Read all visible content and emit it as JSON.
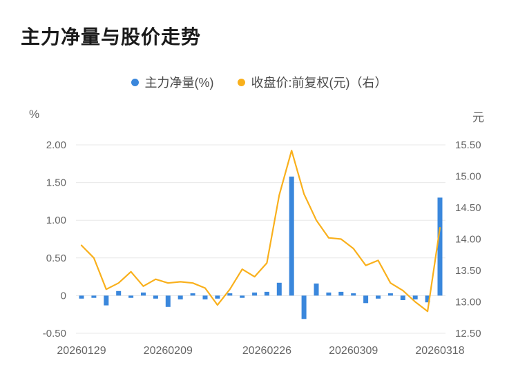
{
  "page": {
    "title": "主力净量与股价走势"
  },
  "legend": [
    {
      "label": "主力净量(%)",
      "color": "#3a87dc"
    },
    {
      "label": "收盘价:前复权(元)（右）",
      "color": "#f9b01c"
    }
  ],
  "axes": {
    "left_unit": "%",
    "right_unit": "元",
    "left_ticks": [
      "2.00",
      "1.50",
      "1.00",
      "0.50",
      "0",
      "-0.50"
    ],
    "right_ticks": [
      "15.50",
      "15.00",
      "14.50",
      "14.00",
      "13.50",
      "13.00",
      "12.50"
    ],
    "x_labels": [
      {
        "label": "20260129",
        "index": 0
      },
      {
        "label": "20260209",
        "index": 7
      },
      {
        "label": "20260226",
        "index": 15
      },
      {
        "label": "20260309",
        "index": 22
      },
      {
        "label": "20260318",
        "index": 29
      }
    ]
  },
  "chart_data": {
    "type": "combo",
    "title": "主力净量与股价走势",
    "x": [
      "20260129",
      "20260130",
      "20260202",
      "20260203",
      "20260204",
      "20260205",
      "20260206",
      "20260209",
      "20260210",
      "20260211",
      "20260212",
      "20260213",
      "20260223",
      "20260224",
      "20260225",
      "20260226",
      "20260227",
      "20260302",
      "20260303",
      "20260304",
      "20260305",
      "20260306",
      "20260309",
      "20260310",
      "20260311",
      "20260312",
      "20260313",
      "20260316",
      "20260317",
      "20260318"
    ],
    "series": [
      {
        "name": "主力净量(%)",
        "type": "bar",
        "axis": "left",
        "color": "#3a87dc",
        "values": [
          -0.04,
          -0.03,
          -0.13,
          0.06,
          -0.03,
          0.04,
          -0.04,
          -0.15,
          -0.05,
          0.03,
          -0.05,
          -0.04,
          0.03,
          -0.03,
          0.04,
          0.05,
          0.17,
          1.58,
          -0.31,
          0.16,
          0.04,
          0.05,
          0.03,
          -0.1,
          -0.04,
          0.03,
          -0.06,
          -0.05,
          -0.09,
          1.3
        ]
      },
      {
        "name": "收盘价:前复权(元)",
        "type": "line",
        "axis": "right",
        "color": "#f9b01c",
        "values": [
          13.9,
          13.7,
          13.2,
          13.3,
          13.48,
          13.25,
          13.36,
          13.3,
          13.32,
          13.3,
          13.22,
          12.95,
          13.2,
          13.52,
          13.4,
          13.62,
          14.7,
          15.41,
          14.72,
          14.3,
          14.02,
          14.0,
          13.85,
          13.58,
          13.66,
          13.3,
          13.18,
          13.0,
          12.85,
          14.18
        ]
      }
    ],
    "left_ylim": [
      -0.5,
      2.0
    ],
    "right_ylim": [
      12.5,
      15.5
    ],
    "grid": true,
    "legend_position": "top",
    "grid_color": "#e8e8e8"
  }
}
